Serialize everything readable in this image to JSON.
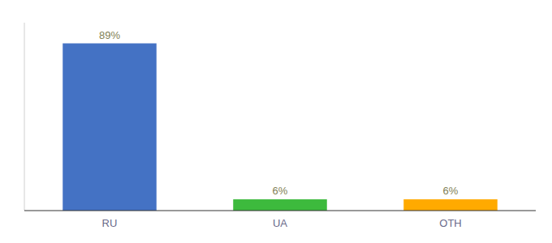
{
  "chart_data": {
    "type": "bar",
    "categories": [
      "RU",
      "UA",
      "OTH"
    ],
    "values": [
      89,
      6,
      6
    ],
    "value_labels": [
      "89%",
      "6%",
      "6%"
    ],
    "colors": [
      "#4472c4",
      "#3dba3d",
      "#ffaa00"
    ],
    "ylim": [
      0,
      100
    ],
    "data_labels": true,
    "tick_labels": "x"
  }
}
